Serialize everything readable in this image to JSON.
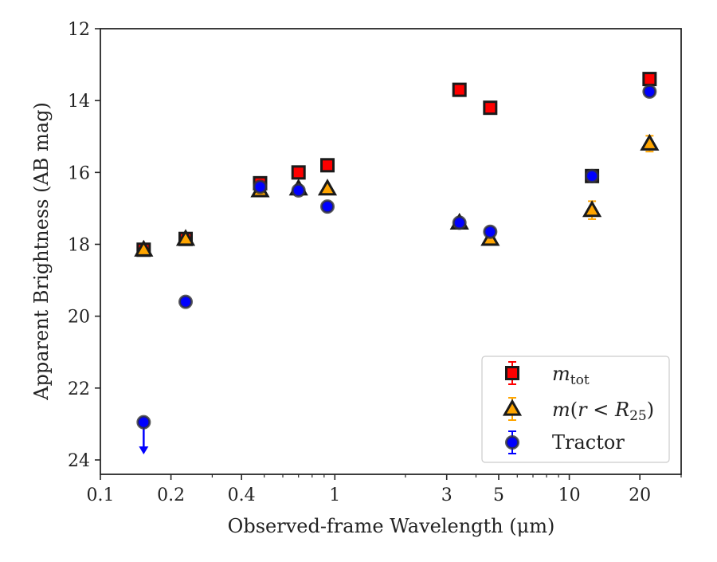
{
  "chart_data": {
    "type": "scatter",
    "xlabel": "Observed-frame Wavelength (μm)",
    "ylabel": "Apparent Brightness (AB mag)",
    "xscale": "log",
    "xlim": [
      0.1,
      30
    ],
    "ylim": [
      24.4,
      12
    ],
    "y_inverted": true,
    "x_ticks": [
      {
        "value": 0.1,
        "label": "0.1"
      },
      {
        "value": 0.2,
        "label": "0.2"
      },
      {
        "value": 0.4,
        "label": "0.4"
      },
      {
        "value": 1,
        "label": "1"
      },
      {
        "value": 3,
        "label": "3"
      },
      {
        "value": 5,
        "label": "5"
      },
      {
        "value": 10,
        "label": "10"
      },
      {
        "value": 20,
        "label": "20"
      }
    ],
    "x_minor_ticks": [
      0.3,
      0.5,
      0.6,
      0.7,
      0.8,
      0.9,
      2,
      4,
      6,
      7,
      8,
      9,
      30
    ],
    "y_ticks": [
      12,
      14,
      16,
      18,
      20,
      22,
      24
    ],
    "grid": false,
    "legend_position": "bottom-right",
    "series": [
      {
        "name": "m_tot",
        "marker": "square",
        "color": "#ff0000",
        "points": [
          {
            "x": 0.153,
            "y": 18.15
          },
          {
            "x": 0.231,
            "y": 17.85
          },
          {
            "x": 0.48,
            "y": 16.3
          },
          {
            "x": 0.7,
            "y": 16.0
          },
          {
            "x": 0.93,
            "y": 15.8
          },
          {
            "x": 3.4,
            "y": 13.7
          },
          {
            "x": 4.6,
            "y": 14.2
          },
          {
            "x": 12.5,
            "y": 16.1,
            "err": 0.1
          },
          {
            "x": 22.0,
            "y": 13.4,
            "err": 0.05
          }
        ]
      },
      {
        "name": "m(r<R25)",
        "marker": "triangle",
        "color": "#ffa500",
        "points": [
          {
            "x": 0.153,
            "y": 18.15
          },
          {
            "x": 0.231,
            "y": 17.85
          },
          {
            "x": 0.48,
            "y": 16.5
          },
          {
            "x": 0.7,
            "y": 16.45
          },
          {
            "x": 0.93,
            "y": 16.45
          },
          {
            "x": 3.4,
            "y": 17.4
          },
          {
            "x": 4.6,
            "y": 17.85
          },
          {
            "x": 12.5,
            "y": 17.05,
            "err": 0.25
          },
          {
            "x": 22.0,
            "y": 15.2,
            "err": 0.22
          }
        ]
      },
      {
        "name": "Tractor",
        "marker": "circle",
        "color": "#0000ff",
        "points": [
          {
            "x": 0.231,
            "y": 19.6
          },
          {
            "x": 0.48,
            "y": 16.4
          },
          {
            "x": 0.7,
            "y": 16.5
          },
          {
            "x": 0.93,
            "y": 16.95
          },
          {
            "x": 3.4,
            "y": 17.4
          },
          {
            "x": 4.6,
            "y": 17.65
          },
          {
            "x": 12.5,
            "y": 16.1
          },
          {
            "x": 22.0,
            "y": 13.75
          },
          {
            "x": 0.153,
            "y": 22.95,
            "upper_limit": true
          }
        ]
      }
    ]
  }
}
